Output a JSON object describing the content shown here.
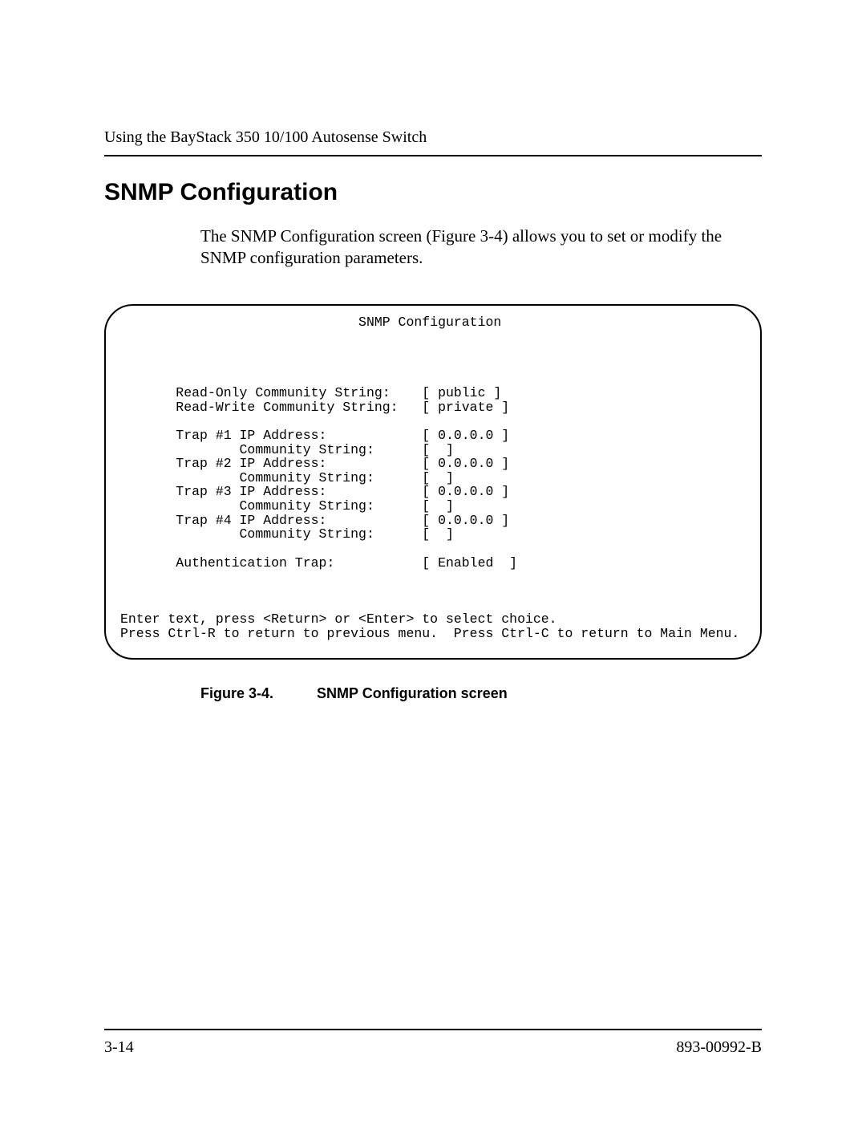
{
  "header": {
    "running_title": "Using the BayStack 350 10/100 Autosense Switch"
  },
  "section": {
    "title": "SNMP Configuration",
    "body": "The SNMP Configuration screen (Figure 3-4) allows you to set or modify the SNMP configuration parameters."
  },
  "terminal": {
    "title": "SNMP Configuration",
    "rows": [
      {
        "label": "Read-Only Community String:",
        "value": "public",
        "indent": 0
      },
      {
        "label": "Read-Write Community String:",
        "value": "private",
        "indent": 0
      },
      {
        "blank": true
      },
      {
        "label": "Trap #1 IP Address:",
        "value": "0.0.0.0",
        "indent": 0
      },
      {
        "label": "Community String:",
        "value": "",
        "indent": 1
      },
      {
        "label": "Trap #2 IP Address:",
        "value": "0.0.0.0",
        "indent": 0
      },
      {
        "label": "Community String:",
        "value": "",
        "indent": 1
      },
      {
        "label": "Trap #3 IP Address:",
        "value": "0.0.0.0",
        "indent": 0
      },
      {
        "label": "Community String:",
        "value": "",
        "indent": 1
      },
      {
        "label": "Trap #4 IP Address:",
        "value": "0.0.0.0",
        "indent": 0
      },
      {
        "label": "Community String:",
        "value": "",
        "indent": 1
      },
      {
        "blank": true
      },
      {
        "label": "Authentication Trap:",
        "value": "Enabled ",
        "indent": 0
      }
    ],
    "footer_lines": [
      "Enter text, press <Return> or <Enter> to select choice.",
      "Press Ctrl-R to return to previous menu.  Press Ctrl-C to return to Main Menu."
    ],
    "layout": {
      "base_indent_spaces": 7,
      "extra_indent_spaces": 8,
      "label_column_width": 31
    }
  },
  "figure_caption": {
    "number": "Figure 3-4.",
    "text": "SNMP Configuration screen"
  },
  "footer": {
    "left": "3-14",
    "right": "893-00992-B"
  }
}
